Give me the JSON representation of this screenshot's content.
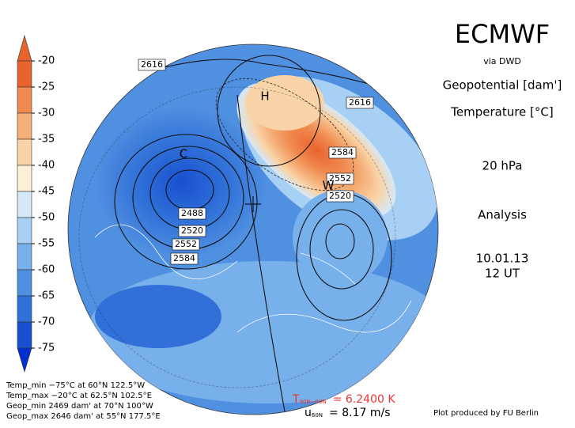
{
  "header": {
    "title": "ECMWF",
    "source": "via DWD",
    "field1": "Geopotential [dam']",
    "field2": "Temperature [°C]",
    "level": "20 hPa",
    "kind": "Analysis",
    "date": "10.01.13",
    "time": "12 UT"
  },
  "colorbar": {
    "labels": [
      "-20",
      "-25",
      "-30",
      "-35",
      "-40",
      "-45",
      "-50",
      "-55",
      "-60",
      "-65",
      "-70",
      "-75"
    ]
  },
  "contour_labels": [
    "2616",
    "2616",
    "2584",
    "2552",
    "2520",
    "2488",
    "2520",
    "2552",
    "2584"
  ],
  "map_labels": [
    "H",
    "C",
    "W"
  ],
  "stats": [
    "Temp_min −75°C at 60°N 122.5°W",
    "Temp_max −20°C at 62.5°N 102.5°E",
    "Geop_min 2469 dam' at 70°N 100°W",
    "Geop_max 2646 dam' at 55°N 177.5°E"
  ],
  "footer": {
    "temp_symbol": "T",
    "temp_sub": "90N−60N",
    "temp_value": "= 6.2400 K",
    "wind_symbol": "u",
    "wind_sub": "60N",
    "wind_value": "= 8.17 m/s",
    "credit": "Plot produced by FU Berlin"
  }
}
